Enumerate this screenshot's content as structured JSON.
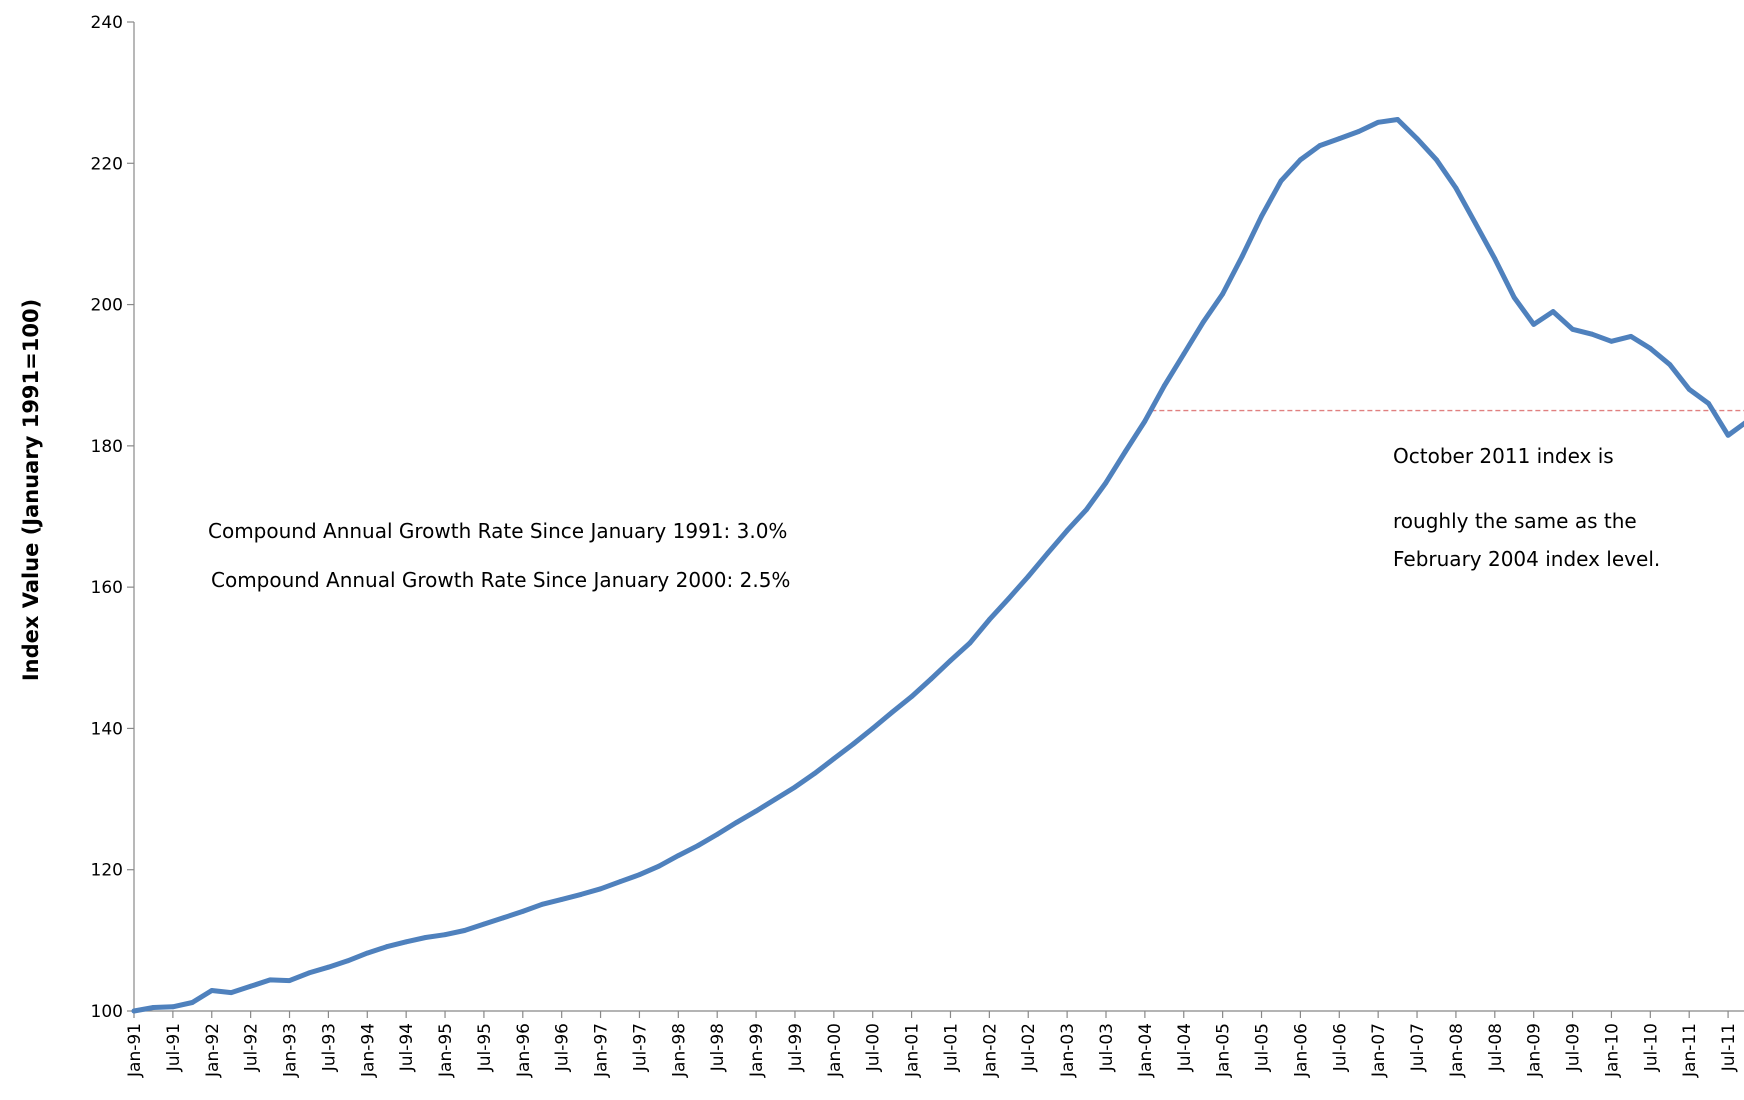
{
  "chart_data": {
    "type": "line",
    "title": "",
    "xlabel": "",
    "ylabel": "Index Value (January 1991=100)",
    "ylim": [
      100,
      240
    ],
    "yticks": [
      100,
      120,
      140,
      160,
      180,
      200,
      220,
      240
    ],
    "xticks": [
      "Jan-91",
      "Jul-91",
      "Jan-92",
      "Jul-92",
      "Jan-93",
      "Jul-93",
      "Jan-94",
      "Jul-94",
      "Jan-95",
      "Jul-95",
      "Jan-96",
      "Jul-96",
      "Jan-97",
      "Jul-97",
      "Jan-98",
      "Jul-98",
      "Jan-99",
      "Jul-99",
      "Jan-00",
      "Jul-00",
      "Jan-01",
      "Jul-01",
      "Jan-02",
      "Jul-02",
      "Jan-03",
      "Jul-03",
      "Jan-04",
      "Jul-04",
      "Jan-05",
      "Jul-05",
      "Jan-06",
      "Jul-06",
      "Jan-07",
      "Jul-07",
      "Jan-08",
      "Jul-08",
      "Jan-09",
      "Jul-09",
      "Jan-10",
      "Jul-10",
      "Jan-11",
      "Jul-11"
    ],
    "grid": false,
    "legend": "none",
    "line_color": "#4F81BD",
    "reference_line_color": "#E08080",
    "series": [
      {
        "x": [
          "Jan-91",
          "Apr-91",
          "Jul-91",
          "Oct-91",
          "Jan-92",
          "Apr-92",
          "Jul-92",
          "Oct-92",
          "Jan-93",
          "Apr-93",
          "Jul-93",
          "Oct-93",
          "Jan-94",
          "Apr-94",
          "Jul-94",
          "Oct-94",
          "Jan-95",
          "Apr-95",
          "Jul-95",
          "Oct-95",
          "Jan-96",
          "Apr-96",
          "Jul-96",
          "Oct-96",
          "Jan-97",
          "Apr-97",
          "Jul-97",
          "Oct-97",
          "Jan-98",
          "Apr-98",
          "Jul-98",
          "Oct-98",
          "Jan-99",
          "Apr-99",
          "Jul-99",
          "Oct-99",
          "Jan-00",
          "Apr-00",
          "Jul-00",
          "Oct-00",
          "Jan-01",
          "Apr-01",
          "Jul-01",
          "Oct-01",
          "Jan-02",
          "Apr-02",
          "Jul-02",
          "Oct-02",
          "Jan-03",
          "Apr-03",
          "Jul-03",
          "Oct-03",
          "Jan-04",
          "Apr-04",
          "Jul-04",
          "Oct-04",
          "Jan-05",
          "Apr-05",
          "Jul-05",
          "Oct-05",
          "Jan-06",
          "Apr-06",
          "Jul-06",
          "Oct-06",
          "Jan-07",
          "Apr-07",
          "Jul-07",
          "Oct-07",
          "Jan-08",
          "Apr-08",
          "Jul-08",
          "Oct-08",
          "Jan-09",
          "Apr-09",
          "Jul-09",
          "Oct-09",
          "Jan-10",
          "Apr-10",
          "Jul-10",
          "Oct-10",
          "Jan-11",
          "Apr-11",
          "Jul-11",
          "Oct-11"
        ],
        "values": [
          100,
          100.5,
          100.6,
          101.2,
          102.9,
          102.6,
          103.5,
          104.4,
          104.3,
          105.4,
          106.2,
          107.1,
          108.2,
          109.1,
          109.8,
          110.4,
          110.8,
          111.4,
          112.3,
          113.2,
          114.1,
          115.1,
          115.8,
          116.5,
          117.3,
          118.3,
          119.3,
          120.5,
          122,
          123.4,
          125,
          126.7,
          128.3,
          130,
          131.7,
          133.6,
          135.7,
          137.8,
          140,
          142.3,
          144.5,
          147,
          149.6,
          152.1,
          155.4,
          158.4,
          161.5,
          164.8,
          168,
          171,
          174.8,
          179.2,
          183.5,
          188.5,
          193,
          197.5,
          201.5,
          206.8,
          212.5,
          217.5,
          220.5,
          222.5,
          223.5,
          224.5,
          225.8,
          226.2,
          223.5,
          220.5,
          216.5,
          211.5,
          206.5,
          201,
          197.2,
          199,
          196.5,
          195.8,
          194.8,
          195.5,
          193.8,
          191.5,
          188,
          186,
          181.5,
          183.5
        ]
      }
    ],
    "reference_line": {
      "from": "Feb-04",
      "to": "Oct-11",
      "value": 185
    },
    "annotations": [
      "Compound Annual Growth Rate Since January 1991:  3.0%",
      "Compound Annual Growth Rate Since January 2000:  2.5%",
      "October 2011 index is",
      "roughly the same as the",
      "February 2004 index level."
    ]
  }
}
